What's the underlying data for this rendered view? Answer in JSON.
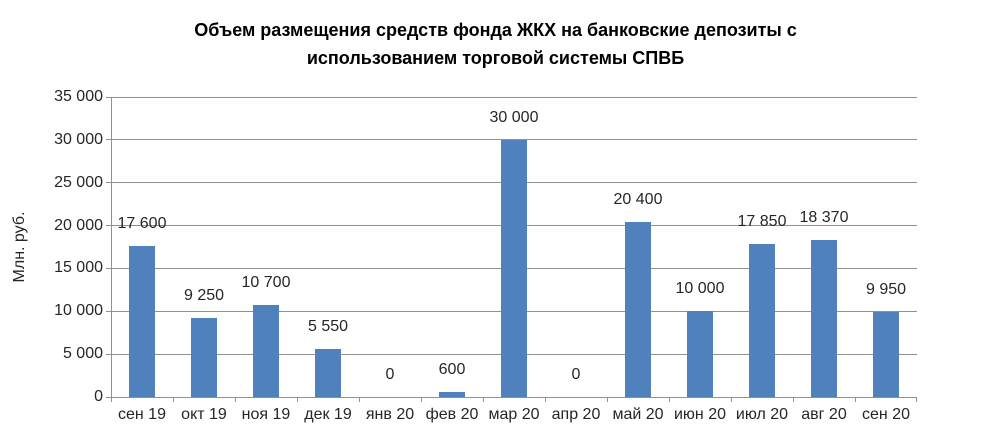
{
  "chart_data": {
    "type": "bar",
    "title": "Объем размещения средств фонда ЖКХ на банковские депозиты с использованием торговой системы СПВБ",
    "title_lines": [
      "Объем размещения средств фонда ЖКХ на банковские депозиты с",
      "использованием торговой  системы СПВБ"
    ],
    "xlabel": "",
    "ylabel": "Млн. руб.",
    "ylim": [
      0,
      35000
    ],
    "grid": "horizontal",
    "legend": "none",
    "bar_color": "#4F81BD",
    "axis_color": "#919191",
    "categories": [
      "сен 19",
      "окт 19",
      "ноя 19",
      "дек 19",
      "янв 20",
      "фев 20",
      "мар 20",
      "апр 20",
      "май 20",
      "июн 20",
      "июл 20",
      "авг 20",
      "сен 20"
    ],
    "values": [
      17600,
      9250,
      10700,
      5550,
      0,
      600,
      30000,
      0,
      20400,
      10000,
      17850,
      18370,
      9950
    ],
    "value_labels": [
      "17 600",
      "9 250",
      "10 700",
      "5 550",
      "0",
      "600",
      "30 000",
      "0",
      "20 400",
      "10 000",
      "17 850",
      "18 370",
      "9 950"
    ],
    "y_ticks": [
      {
        "value": 0,
        "label": "0"
      },
      {
        "value": 5000,
        "label": "5 000"
      },
      {
        "value": 10000,
        "label": "10 000"
      },
      {
        "value": 15000,
        "label": "15 000"
      },
      {
        "value": 20000,
        "label": "20 000"
      },
      {
        "value": 25000,
        "label": "25 000"
      },
      {
        "value": 30000,
        "label": "30 000"
      },
      {
        "value": 35000,
        "label": "35 000"
      }
    ]
  }
}
